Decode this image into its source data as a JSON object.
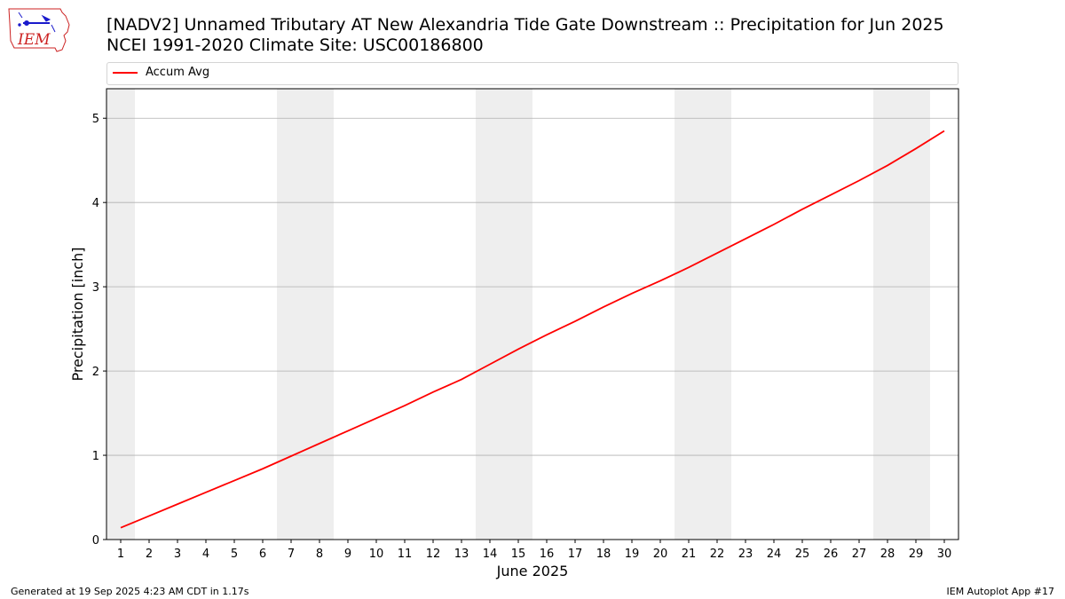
{
  "header": {
    "title_line1": "[NADV2] Unnamed Tributary  AT New Alexandria Tide Gate Downstream :: Precipitation for Jun 2025",
    "title_line2": "NCEI 1991-2020 Climate Site: USC00186800",
    "logo_text": "IEM"
  },
  "footer": {
    "left": "Generated at 19 Sep 2025 4:23 AM CDT in 1.17s",
    "right": "IEM Autoplot App #17"
  },
  "colors": {
    "series": "#ff0000",
    "weekend_band": "#eeeeee",
    "grid": "#b0b0b0",
    "logo": "#cc2222"
  },
  "chart_data": {
    "type": "line",
    "title": "",
    "xlabel": "June 2025",
    "ylabel": "Precipitation [inch]",
    "legend": "top",
    "grid": "horizontal",
    "xlim": [
      0.5,
      30.5
    ],
    "ylim": [
      0,
      5.35
    ],
    "x": [
      1,
      2,
      3,
      4,
      5,
      6,
      7,
      8,
      9,
      10,
      11,
      12,
      13,
      14,
      15,
      16,
      17,
      18,
      19,
      20,
      21,
      22,
      23,
      24,
      25,
      26,
      27,
      28,
      29,
      30
    ],
    "xticks": [
      "1",
      "2",
      "3",
      "4",
      "5",
      "6",
      "7",
      "8",
      "9",
      "10",
      "11",
      "12",
      "13",
      "14",
      "15",
      "16",
      "17",
      "18",
      "19",
      "20",
      "21",
      "22",
      "23",
      "24",
      "25",
      "26",
      "27",
      "28",
      "29",
      "30"
    ],
    "yticks": [
      0,
      1,
      2,
      3,
      4,
      5
    ],
    "weekend_bands": [
      [
        0.5,
        1.5
      ],
      [
        6.5,
        8.5
      ],
      [
        13.5,
        15.5
      ],
      [
        20.5,
        22.5
      ],
      [
        27.5,
        29.5
      ]
    ],
    "series": [
      {
        "name": "Accum Avg",
        "values": [
          0.14,
          0.28,
          0.42,
          0.56,
          0.7,
          0.84,
          0.99,
          1.14,
          1.29,
          1.44,
          1.59,
          1.75,
          1.9,
          2.08,
          2.26,
          2.43,
          2.59,
          2.76,
          2.92,
          3.07,
          3.23,
          3.4,
          3.57,
          3.74,
          3.92,
          4.09,
          4.26,
          4.44,
          4.64,
          4.85
        ]
      }
    ]
  }
}
